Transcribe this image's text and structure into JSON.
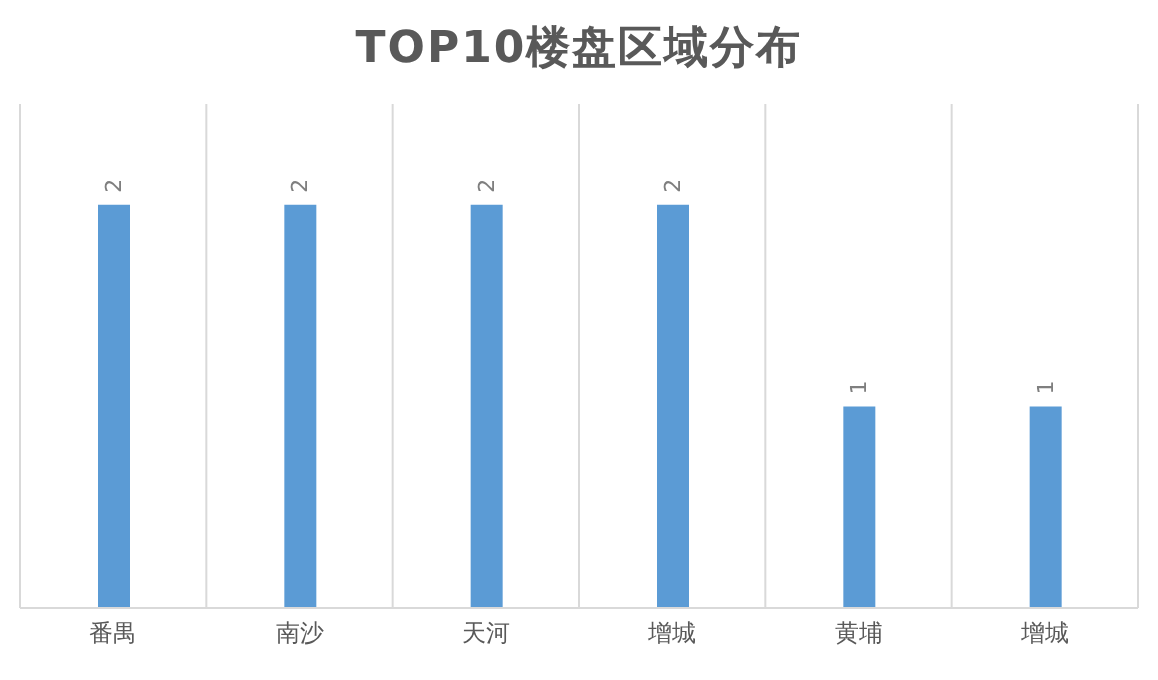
{
  "chart_data": {
    "type": "bar",
    "title": "TOP10楼盘区域分布",
    "categories": [
      "番禺",
      "南沙",
      "天河",
      "增城",
      "黄埔",
      "增城"
    ],
    "values": [
      2,
      2,
      2,
      2,
      1,
      1
    ],
    "color": "#5b9bd5",
    "ylim": [
      0,
      2.5
    ],
    "grid": "x",
    "data_labels": true
  }
}
